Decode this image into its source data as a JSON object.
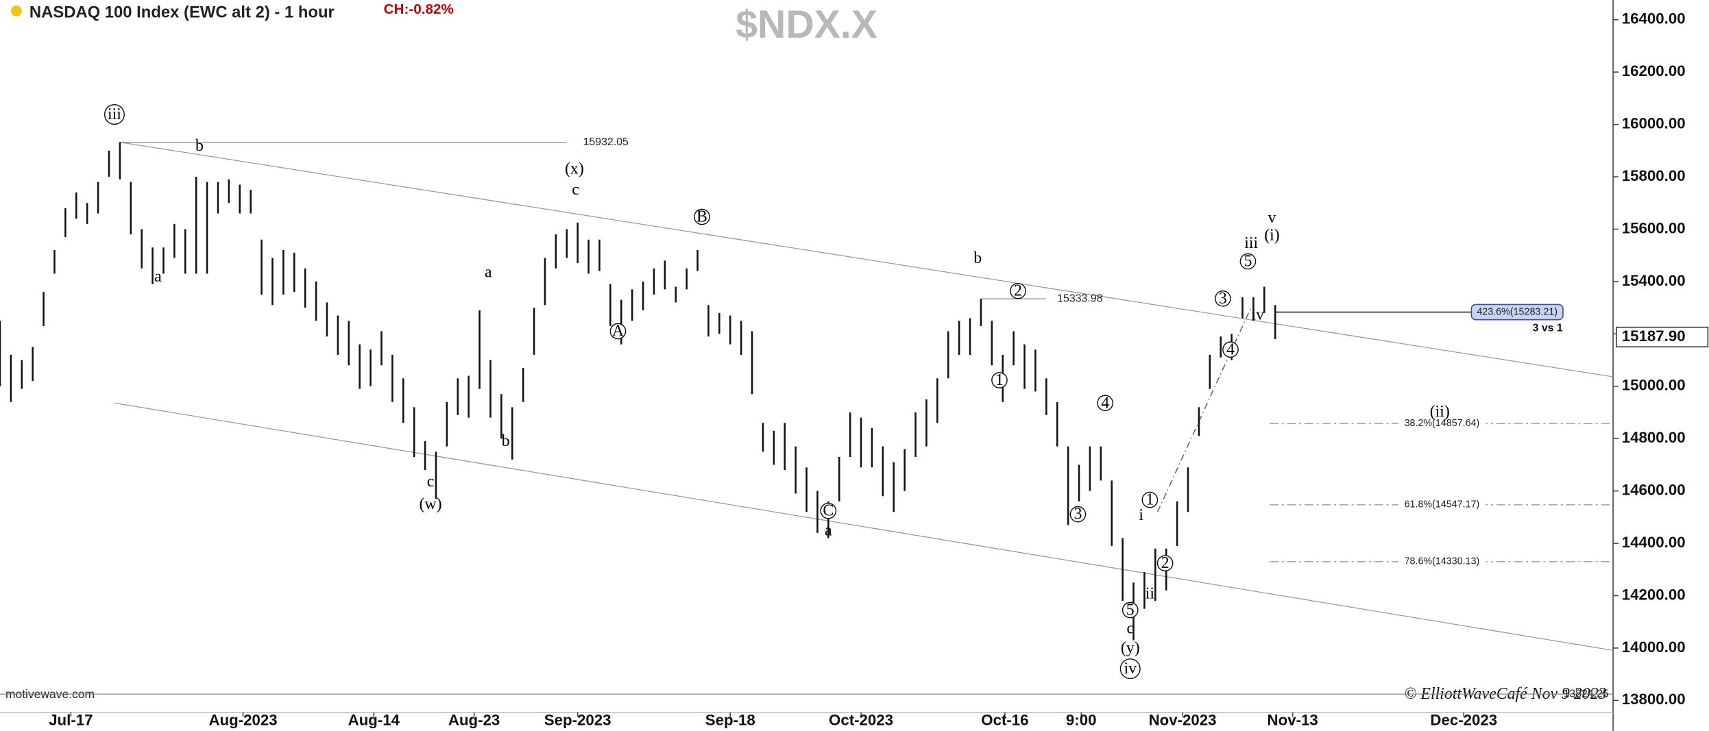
{
  "chart_data": {
    "type": "hlbar",
    "title": "NASDAQ 100 Index (EWC alt 2) - 1 hour",
    "change": "CH:-0.82%",
    "symbol": "$NDX.X",
    "source": "motivewave.com",
    "copyright": "© ElliottWaveCafé Nov 9 2023",
    "color": "#111111",
    "x": [
      0,
      1,
      2,
      3,
      4,
      5,
      6,
      7,
      8,
      9,
      10,
      11,
      12,
      13,
      14,
      15,
      16,
      17,
      18,
      19,
      20,
      21,
      22,
      23,
      24,
      25,
      26,
      27,
      28,
      29,
      30,
      31,
      32,
      33,
      34,
      35,
      36,
      37,
      38,
      39,
      40,
      41,
      42,
      43,
      44,
      45,
      46,
      47,
      48,
      49,
      50,
      51,
      52,
      53,
      54,
      55,
      56,
      57,
      58,
      59,
      60,
      61,
      62,
      63,
      64,
      65,
      66,
      67,
      68,
      69,
      70,
      71,
      72,
      73,
      74,
      75,
      76,
      77,
      78,
      79,
      80,
      81,
      82,
      83,
      84,
      85,
      86,
      87,
      88,
      89,
      90,
      91,
      92,
      93,
      94,
      95,
      96,
      97,
      98,
      99,
      100,
      101,
      102,
      103,
      104,
      105,
      106,
      107,
      108,
      109,
      110,
      111,
      112,
      113,
      114,
      115,
      116,
      117
    ],
    "high": [
      15250,
      15120,
      15100,
      15150,
      15360,
      15520,
      15680,
      15740,
      15700,
      15780,
      15900,
      15932,
      15780,
      15600,
      15530,
      15530,
      15620,
      15600,
      15800,
      15780,
      15780,
      15790,
      15770,
      15750,
      15560,
      15490,
      15520,
      15510,
      15450,
      15400,
      15320,
      15270,
      15250,
      15160,
      15140,
      15210,
      15120,
      15030,
      14920,
      14790,
      14750,
      14940,
      15030,
      15040,
      15290,
      15100,
      14970,
      14920,
      15070,
      15300,
      15490,
      15580,
      15600,
      15625,
      15560,
      15560,
      15390,
      15330,
      15370,
      15400,
      15450,
      15480,
      15380,
      15450,
      15520,
      15310,
      15280,
      15270,
      15250,
      15210,
      14860,
      14830,
      14860,
      14770,
      14690,
      14600,
      14560,
      14730,
      14900,
      14880,
      14840,
      14770,
      14710,
      14760,
      14900,
      14950,
      15030,
      15210,
      15250,
      15260,
      15334,
      15250,
      15120,
      15210,
      15160,
      15140,
      15030,
      14940,
      14770,
      14700,
      14770,
      14770,
      14640,
      14420,
      14250,
      14290,
      14380,
      14380,
      14560,
      14690,
      14920,
      15120,
      15190,
      15200,
      15340,
      15340,
      15380,
      15310
    ],
    "low": [
      15000,
      14940,
      14990,
      15020,
      15230,
      15430,
      15570,
      15640,
      15620,
      15660,
      15800,
      15790,
      15580,
      15450,
      15390,
      15430,
      15490,
      15430,
      15430,
      15430,
      15660,
      15700,
      15660,
      15660,
      15350,
      15310,
      15350,
      15360,
      15300,
      15250,
      15190,
      15120,
      15080,
      14990,
      15000,
      15080,
      14940,
      14860,
      14730,
      14680,
      14570,
      14770,
      14890,
      14880,
      14990,
      14880,
      14800,
      14720,
      14940,
      15120,
      15310,
      15450,
      15490,
      15470,
      15430,
      15440,
      15230,
      15160,
      15250,
      15290,
      15350,
      15370,
      15320,
      15370,
      15440,
      15190,
      15200,
      15160,
      15120,
      14970,
      14750,
      14700,
      14680,
      14590,
      14520,
      14440,
      14420,
      14560,
      14730,
      14690,
      14690,
      14580,
      14520,
      14600,
      14730,
      14770,
      14860,
      15030,
      15120,
      15120,
      15230,
      15080,
      14940,
      15080,
      14990,
      14980,
      14890,
      14770,
      14470,
      14560,
      14600,
      14640,
      14390,
      14180,
      14030,
      14150,
      14180,
      14220,
      14390,
      14520,
      14810,
      14990,
      15110,
      15100,
      15260,
      15250,
      15280,
      15180
    ],
    "xlim": [
      0,
      148
    ],
    "xticks": [
      {
        "value": 6.5,
        "label": "Jul-17"
      },
      {
        "value": 22.3,
        "label": "Aug-2023"
      },
      {
        "value": 34.3,
        "label": "Aug-14"
      },
      {
        "value": 43.5,
        "label": "Aug-23"
      },
      {
        "value": 53,
        "label": "Sep-2023"
      },
      {
        "value": 67,
        "label": "Sep-18"
      },
      {
        "value": 79,
        "label": "Oct-2023"
      },
      {
        "value": 92.2,
        "label": "Oct-16"
      },
      {
        "value": 99.2,
        "label": "9:00"
      },
      {
        "value": 108.5,
        "label": "Nov-2023"
      },
      {
        "value": 118.6,
        "label": "Nov-13"
      },
      {
        "value": 134.3,
        "label": "Dec-2023"
      }
    ],
    "ylim": [
      13750,
      16475
    ],
    "yticks": [
      {
        "value": 13800,
        "label": "13800.00"
      },
      {
        "value": 14000,
        "label": "14000.00"
      },
      {
        "value": 14200,
        "label": "14200.00"
      },
      {
        "value": 14400,
        "label": "14400.00"
      },
      {
        "value": 14600,
        "label": "14600.00"
      },
      {
        "value": 14800,
        "label": "14800.00"
      },
      {
        "value": 15000,
        "label": "15000.00"
      },
      {
        "value": 15200,
        "label": "15200.00"
      },
      {
        "value": 15400,
        "label": "15400.00"
      },
      {
        "value": 15600,
        "label": "15600.00"
      },
      {
        "value": 15800,
        "label": "15800.00"
      },
      {
        "value": 16000,
        "label": "16000.00"
      },
      {
        "value": 16200,
        "label": "16200.00"
      },
      {
        "value": 16400,
        "label": "16400.00"
      }
    ],
    "last": {
      "value": 15187.9,
      "label": "15187.90"
    },
    "levels": [
      15932.05,
      15333.98,
      13824.25
    ],
    "channel": [
      [
        11,
        15932,
        148,
        15036
      ],
      [
        10.5,
        14936,
        148,
        13991
      ]
    ],
    "fib_levels": [
      {
        "value": 15283.21,
        "label": "423.6%(15283.21)"
      },
      {
        "value": 14857.64,
        "label": "38.2%(14857.64)"
      },
      {
        "value": 14547.17,
        "label": "61.8%(14547.17)"
      },
      {
        "value": 14330.13,
        "label": "78.6%(14330.13)"
      }
    ],
    "note": "3 vs 1",
    "annotations": [
      {
        "text": "iii",
        "x": 10.5,
        "y": 16038,
        "circled": true
      },
      {
        "text": "b",
        "x": 18.3,
        "y": 15918,
        "circled": false
      },
      {
        "text": "a",
        "x": 14.5,
        "y": 15418,
        "circled": false
      },
      {
        "text": "(x)",
        "x": 52.7,
        "y": 15830,
        "circled": false
      },
      {
        "text": "c",
        "x": 52.8,
        "y": 15751,
        "circled": false
      },
      {
        "text": "B",
        "x": 64.4,
        "y": 15647,
        "circled": true
      },
      {
        "text": "A",
        "x": 56.7,
        "y": 15210,
        "circled": true
      },
      {
        "text": "a",
        "x": 44.8,
        "y": 15435,
        "circled": false
      },
      {
        "text": "b",
        "x": 46.4,
        "y": 14790,
        "circled": false
      },
      {
        "text": "c",
        "x": 39.5,
        "y": 14636,
        "circled": false
      },
      {
        "text": "(w)",
        "x": 39.5,
        "y": 14549,
        "circled": false
      },
      {
        "text": "C",
        "x": 76,
        "y": 14524,
        "circled": true
      },
      {
        "text": "a",
        "x": 76,
        "y": 14449,
        "circled": false
      },
      {
        "text": "b",
        "x": 89.7,
        "y": 15489,
        "circled": false
      },
      {
        "text": "2",
        "x": 93.4,
        "y": 15364,
        "circled": true
      },
      {
        "text": "1",
        "x": 91.7,
        "y": 15023,
        "circled": true
      },
      {
        "text": "4",
        "x": 101.4,
        "y": 14936,
        "circled": true
      },
      {
        "text": "3",
        "x": 98.9,
        "y": 14511,
        "circled": true
      },
      {
        "text": "1",
        "x": 105.5,
        "y": 14566,
        "circled": true
      },
      {
        "text": "i",
        "x": 104.7,
        "y": 14507,
        "circled": false
      },
      {
        "text": "2",
        "x": 106.9,
        "y": 14324,
        "circled": true
      },
      {
        "text": "ii",
        "x": 105.5,
        "y": 14208,
        "circled": false
      },
      {
        "text": "5",
        "x": 103.7,
        "y": 14145,
        "circled": true
      },
      {
        "text": "c",
        "x": 103.7,
        "y": 14075,
        "circled": false
      },
      {
        "text": "(y)",
        "x": 103.7,
        "y": 14000,
        "circled": false
      },
      {
        "text": "iv",
        "x": 103.7,
        "y": 13921,
        "circled": true
      },
      {
        "text": "3",
        "x": 112.2,
        "y": 15335,
        "circled": true
      },
      {
        "text": "5",
        "x": 114.5,
        "y": 15477,
        "circled": true
      },
      {
        "text": "iii",
        "x": 114.8,
        "y": 15547,
        "circled": false
      },
      {
        "text": "(i)",
        "x": 116.7,
        "y": 15576,
        "circled": false
      },
      {
        "text": "v",
        "x": 116.7,
        "y": 15643,
        "circled": false
      },
      {
        "text": "4",
        "x": 112.9,
        "y": 15140,
        "circled": true
      },
      {
        "text": "iv",
        "x": 115.4,
        "y": 15273,
        "circled": false
      },
      {
        "text": "(ii)",
        "x": 132.1,
        "y": 14903,
        "circled": false
      }
    ]
  }
}
